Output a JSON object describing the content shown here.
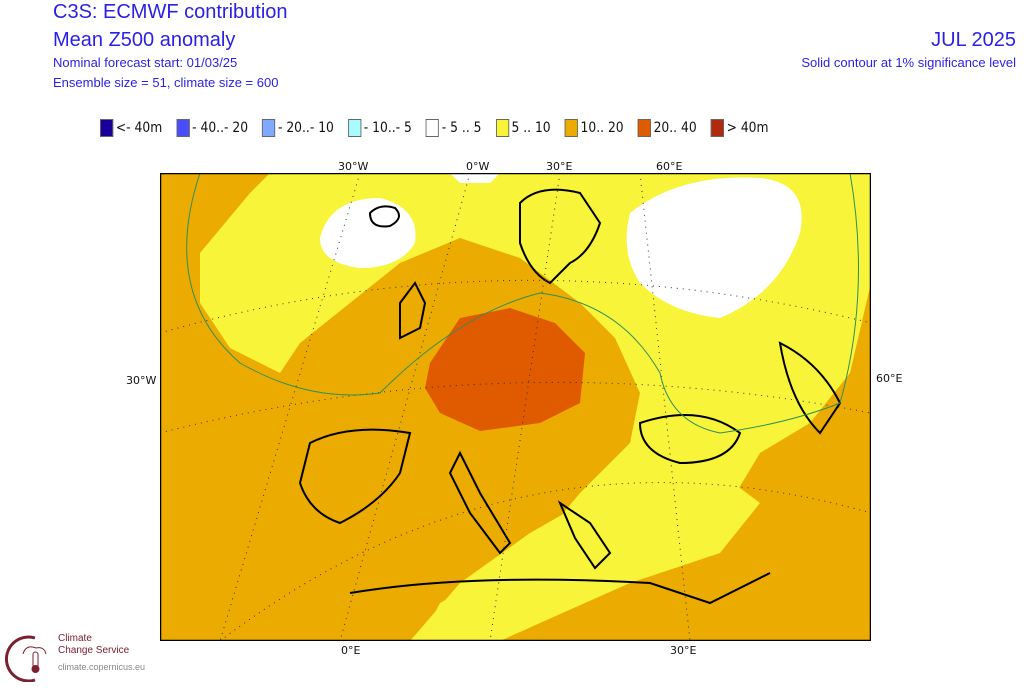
{
  "header": {
    "title": "C3S: ECMWF contribution",
    "subtitle": "Mean Z500 anomaly",
    "forecast_start": "Nominal forecast start: 01/03/25",
    "ensemble": "Ensemble size = 51, climate size = 600",
    "month": "JUL 2025",
    "significance": "Solid contour at 1% significance level"
  },
  "legend": [
    {
      "label": "<- 40m",
      "color": "#1a0099"
    },
    {
      "label": "- 40..- 20",
      "color": "#4a4dff"
    },
    {
      "label": "- 20..- 10",
      "color": "#80aaff"
    },
    {
      "label": "- 10..- 5",
      "color": "#a8fcff"
    },
    {
      "label": "- 5 .. 5",
      "color": "#ffffff"
    },
    {
      "label": "5 .. 10",
      "color": "#f8f43a"
    },
    {
      "label": "10.. 20",
      "color": "#ebab00"
    },
    {
      "label": "20.. 40",
      "color": "#e05a00"
    },
    {
      "label": ">  40m",
      "color": "#b02a10"
    }
  ],
  "map": {
    "top_labels": [
      "30°W",
      "0°W",
      "30°E",
      "60°E"
    ],
    "left_label": "30°W",
    "right_label": "60°E",
    "bottom_labels": [
      "0°E",
      "30°E"
    ]
  },
  "logo": {
    "line1": "Climate",
    "line2": "Change Service",
    "url": "climate.copernicus.eu"
  }
}
